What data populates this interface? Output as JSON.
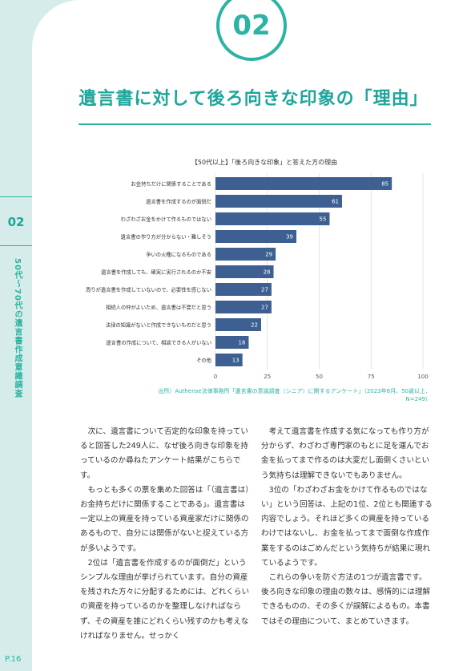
{
  "badge": "02",
  "title": "遺言書に対して後ろ向きな印象の「理由」",
  "side": {
    "number": "02",
    "label": "50代〜70代の遺言書作成意識調査"
  },
  "page_number": "P.16",
  "chart_data": {
    "type": "bar",
    "title": "【50代以上】「後ろ向きな印象」と答えた方の理由",
    "categories": [
      "お金持ちだけに関係することである",
      "遺言書を作成するのが面倒だ",
      "わざわざお金をかけて作るものではない",
      "遺言書の作り方が分からない・難しそう",
      "争いの火種になるものである",
      "遺言書を作成しても、確実に実行されるのか不安",
      "周りが遺言書を作成していないので、必要性を感じない",
      "相続人の仲がよいため、遺言書は不要だと思う",
      "法律の知識がないと作成できないものだと思う",
      "遺言書の作成について、相談できる人がいない",
      "その他"
    ],
    "values": [
      85,
      61,
      55,
      39,
      29,
      28,
      27,
      27,
      22,
      16,
      13
    ],
    "xlim": [
      0,
      100
    ],
    "xticks": [
      0,
      25,
      50,
      75,
      100
    ],
    "bar_color": "#3d5f91",
    "grid": true
  },
  "source": "出所）Authense法律事務所「遺言書の意識調査（シニア）に関するアンケート」（2023年8月、50歳以上、N=249）",
  "left_paragraphs": [
    "次に、遺言書について否定的な印象を持っていると回答した249人に、なぜ後ろ向きな印象を持っているのか尋ねたアンケート結果がこちらです。",
    "もっとも多くの票を集めた回答は「（遺言書は）お金持ちだけに関係することである」。遺言書は一定以上の資産を持っている資産家だけに関係のあるもので、自分には関係がないと捉えている方が多いようです。",
    "2位は「遺言書を作成するのが面倒だ」というシンプルな理由が挙げられています。自分の資産を残された方々に分配するためには、どれくらいの資産を持っているのかを整理しなければならず、その資産を誰にどれくらい残すのかも考えなければなりません。せっかく"
  ],
  "right_paragraphs": [
    "考えて遺言書を作成する気になっても作り方が分からず、わざわざ専門家のもとに足を運んでお金を払ってまで作るのは大変だし面倒くさいという気持ちは理解できないでもありません。",
    "3位の「わざわざお金をかけて作るものではない」という回答は、上記の1位、2位とも関連する内容でしょう。それほど多くの資産を持っているわけではないし、お金を払ってまで面倒な作成作業をするのはごめんだという気持ちが結果に現れているようです。",
    "これらの争いを防ぐ方法の1つが遺言書です。後ろ向きな印象の理由の数々は、感情的には理解できるものの、その多くが誤解によるもの。本書ではその理由について、まとめていきます。"
  ]
}
